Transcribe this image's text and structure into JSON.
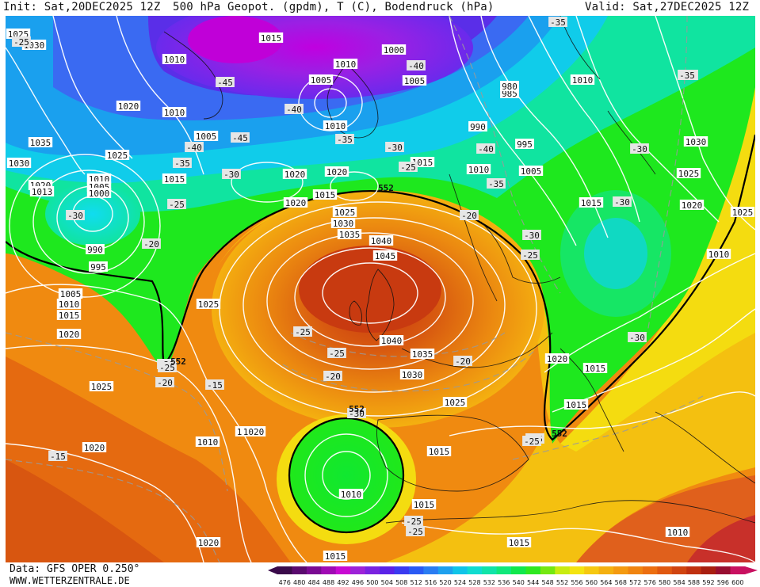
{
  "header": {
    "init_label": "Init: Sat,20DEC2025 12Z",
    "product_label": "500 hPa Geopot. (gpdm), T (C), Bodendruck (hPa)",
    "valid_label": "Valid: Sat,27DEC2025 12Z"
  },
  "footer": {
    "data_source": "Data: GFS OPER 0.250°",
    "website": "WWW.WETTERZENTRALE.DE"
  },
  "legend": {
    "ticks": [
      "476",
      "480",
      "484",
      "488",
      "492",
      "496",
      "500",
      "504",
      "508",
      "512",
      "516",
      "520",
      "524",
      "528",
      "532",
      "536",
      "540",
      "544",
      "548",
      "552",
      "556",
      "560",
      "564",
      "568",
      "572",
      "576",
      "580",
      "584",
      "588",
      "592",
      "596",
      "600"
    ],
    "colors": [
      "#3a0a4a",
      "#5a0a6e",
      "#7a0a92",
      "#a00ab4",
      "#c80ad2",
      "#9d22d8",
      "#7a22e0",
      "#5a22e8",
      "#3a3af0",
      "#2a5af4",
      "#2a7cf2",
      "#1ea0ee",
      "#10c4e8",
      "#10dcd0",
      "#10e4a8",
      "#10e87a",
      "#10e84c",
      "#2ee820",
      "#74e810",
      "#c8ec10",
      "#f4e410",
      "#f6c810",
      "#f4b010",
      "#f49a10",
      "#f08410",
      "#ec6e10",
      "#e05810",
      "#d04410",
      "#c03010",
      "#a81e10",
      "#980e30",
      "#c81060"
    ]
  },
  "isobar_labels": [
    {
      "text": "1025"
    },
    {
      "text": "1030"
    },
    {
      "text": "1035"
    },
    {
      "text": "1030"
    },
    {
      "text": "1020"
    },
    {
      "text": "1013"
    },
    {
      "text": "1010"
    },
    {
      "text": "1005"
    },
    {
      "text": "1000"
    },
    {
      "text": "990"
    },
    {
      "text": "995"
    },
    {
      "text": "1005"
    },
    {
      "text": "1010"
    },
    {
      "text": "1015"
    },
    {
      "text": "1020"
    },
    {
      "text": "1025"
    },
    {
      "text": "1020"
    },
    {
      "text": "1025"
    },
    {
      "text": "1020"
    },
    {
      "text": "1015"
    },
    {
      "text": "1010"
    },
    {
      "text": "1005"
    },
    {
      "text": "1010"
    },
    {
      "text": "1015"
    },
    {
      "text": "1005"
    },
    {
      "text": "1010"
    },
    {
      "text": "1020"
    },
    {
      "text": "1015"
    },
    {
      "text": "1020"
    },
    {
      "text": "1025"
    },
    {
      "text": "1030"
    },
    {
      "text": "1035"
    },
    {
      "text": "1040"
    },
    {
      "text": "1045"
    },
    {
      "text": "1040"
    },
    {
      "text": "1035"
    },
    {
      "text": "1030"
    },
    {
      "text": "1025"
    },
    {
      "text": "1015"
    },
    {
      "text": "1010"
    },
    {
      "text": "1015"
    },
    {
      "text": "1020"
    },
    {
      "text": "1010"
    },
    {
      "text": "1005"
    },
    {
      "text": "1000"
    },
    {
      "text": "995"
    },
    {
      "text": "990"
    },
    {
      "text": "985"
    },
    {
      "text": "980"
    },
    {
      "text": "1005"
    },
    {
      "text": "1010"
    },
    {
      "text": "1015"
    },
    {
      "text": "1010"
    },
    {
      "text": "1020"
    },
    {
      "text": "1010"
    },
    {
      "text": "1030"
    },
    {
      "text": "1025"
    },
    {
      "text": "1020"
    },
    {
      "text": "1015"
    },
    {
      "text": "1015"
    },
    {
      "text": "1020"
    },
    {
      "text": "1015"
    },
    {
      "text": "1010"
    },
    {
      "text": "1025"
    },
    {
      "text": "1020"
    },
    {
      "text": "1015"
    },
    {
      "text": "1010"
    },
    {
      "text": "1015"
    },
    {
      "text": "1025"
    },
    {
      "text": "1020"
    },
    {
      "text": "1020"
    },
    {
      "text": "1010"
    },
    {
      "text": "1015"
    },
    {
      "text": "1015"
    },
    {
      "text": "1025"
    },
    {
      "text": "1030"
    }
  ],
  "temperature_labels": [
    {
      "text": "-25"
    },
    {
      "text": "-30"
    },
    {
      "text": "-20"
    },
    {
      "text": "-25"
    },
    {
      "text": "-35"
    },
    {
      "text": "-40"
    },
    {
      "text": "-45"
    },
    {
      "text": "-40"
    },
    {
      "text": "-45"
    },
    {
      "text": "-35"
    },
    {
      "text": "-30"
    },
    {
      "text": "-30"
    },
    {
      "text": "-25"
    },
    {
      "text": "-40"
    },
    {
      "text": "-30"
    },
    {
      "text": "-40"
    },
    {
      "text": "-35"
    },
    {
      "text": "-30"
    },
    {
      "text": "-25"
    },
    {
      "text": "-25"
    },
    {
      "text": "-20"
    },
    {
      "text": "-30"
    },
    {
      "text": "-35"
    },
    {
      "text": "-30"
    },
    {
      "text": "-25"
    },
    {
      "text": "-20"
    },
    {
      "text": "-25"
    },
    {
      "text": "-20"
    },
    {
      "text": "-20"
    },
    {
      "text": "-15"
    },
    {
      "text": "-15"
    },
    {
      "text": "-30"
    },
    {
      "text": "-25"
    },
    {
      "text": "-25"
    },
    {
      "text": "-25"
    },
    {
      "text": "-20"
    },
    {
      "text": "-25"
    },
    {
      "text": "-25"
    },
    {
      "text": "-35"
    }
  ],
  "geopotential_labels": [
    {
      "text": "552"
    },
    {
      "text": "552"
    },
    {
      "text": "552"
    },
    {
      "text": "552"
    }
  ]
}
